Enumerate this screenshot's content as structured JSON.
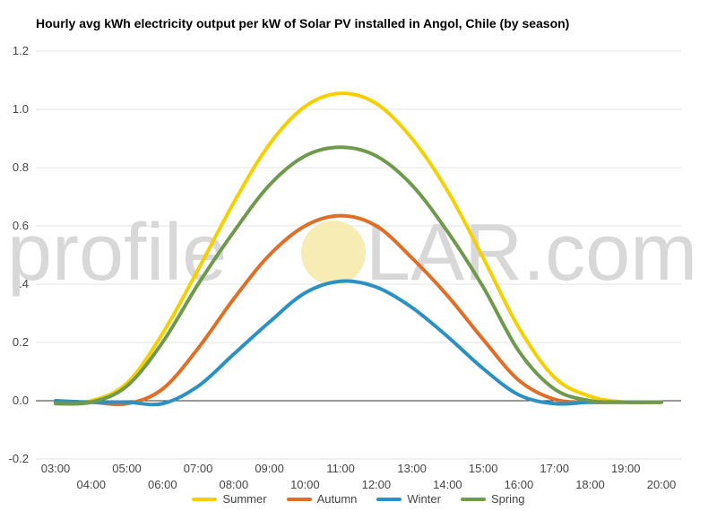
{
  "chart_data": {
    "type": "line",
    "title": "Hourly avg kWh electricity output per kW of Solar PV installed in Angol, Chile (by season)",
    "xlabel": "",
    "ylabel": "",
    "ylim": [
      -0.2,
      1.2
    ],
    "yticks": [
      "-0.2",
      "0.0",
      "0.2",
      "0.4",
      "0.6",
      "0.8",
      "1.0",
      "1.2"
    ],
    "xlim": [
      3,
      20
    ],
    "x_tick_labels": [
      "03:00",
      "04:00",
      "05:00",
      "06:00",
      "07:00",
      "08:00",
      "09:00",
      "10:00",
      "11:00",
      "12:00",
      "13:00",
      "14:00",
      "15:00",
      "16:00",
      "17:00",
      "18:00",
      "19:00",
      "20:00"
    ],
    "grid": true,
    "legend_position": "bottom",
    "x": [
      3,
      4,
      5,
      6,
      7,
      8,
      9,
      10,
      11,
      12,
      13,
      14,
      15,
      16,
      17,
      18,
      19,
      20
    ],
    "series": [
      {
        "name": "Summer",
        "color": "#f5d000",
        "values": [
          -0.005,
          0.0,
          0.06,
          0.23,
          0.45,
          0.68,
          0.88,
          1.01,
          1.055,
          1.02,
          0.9,
          0.72,
          0.49,
          0.25,
          0.08,
          0.015,
          -0.005,
          -0.005
        ]
      },
      {
        "name": "Autumn",
        "color": "#e06e26",
        "values": [
          -0.005,
          -0.005,
          -0.01,
          0.04,
          0.18,
          0.35,
          0.5,
          0.6,
          0.635,
          0.6,
          0.49,
          0.36,
          0.21,
          0.07,
          0.005,
          -0.005,
          -0.005,
          -0.005
        ]
      },
      {
        "name": "Winter",
        "color": "#2b91c3",
        "values": [
          0.0,
          -0.005,
          -0.005,
          -0.01,
          0.05,
          0.16,
          0.27,
          0.37,
          0.41,
          0.39,
          0.32,
          0.22,
          0.11,
          0.02,
          -0.01,
          -0.005,
          -0.005,
          -0.005
        ]
      },
      {
        "name": "Spring",
        "color": "#6f9a4d",
        "values": [
          -0.01,
          -0.005,
          0.05,
          0.2,
          0.4,
          0.58,
          0.74,
          0.84,
          0.87,
          0.84,
          0.74,
          0.58,
          0.39,
          0.17,
          0.04,
          0.0,
          -0.005,
          -0.005
        ]
      }
    ]
  },
  "watermark": {
    "text_left": "profile",
    "text_right": "LAR.com",
    "sun_color": "#f7e9a8"
  }
}
